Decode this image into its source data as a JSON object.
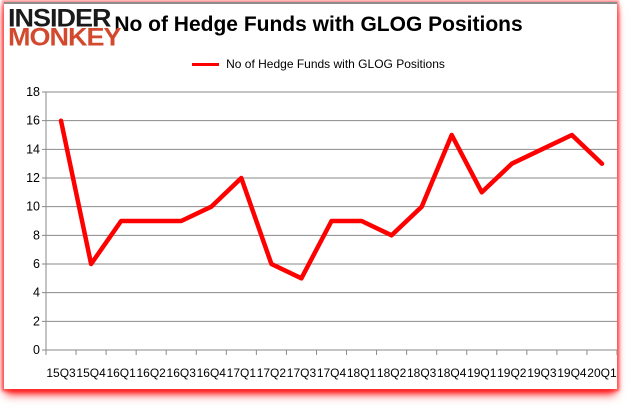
{
  "logo": {
    "line1": "INSIDER",
    "line2": "MONKEY"
  },
  "header": {
    "title": "No of Hedge Funds with GLOG Positions"
  },
  "legend": {
    "label": "No of Hedge Funds with GLOG Positions"
  },
  "colors": {
    "series_line": "#ff0000",
    "grid": "#8a8a8a",
    "axis_text": "#000000",
    "logo_primary": "#1a1a1a",
    "logo_accent": "#d2492e",
    "card_top_border": "#8c8c8c",
    "card_glow": "#ff0000"
  },
  "chart_data": {
    "type": "line",
    "title": "No of Hedge Funds with GLOG Positions",
    "series_name": "No of Hedge Funds with GLOG Positions",
    "categories": [
      "15Q3",
      "15Q4",
      "16Q1",
      "16Q2",
      "16Q3",
      "16Q4",
      "17Q1",
      "17Q2",
      "17Q3",
      "17Q4",
      "18Q1",
      "18Q2",
      "18Q3",
      "18Q4",
      "19Q1",
      "19Q2",
      "19Q3",
      "19Q4",
      "20Q1"
    ],
    "values": [
      16,
      6,
      9,
      9,
      9,
      10,
      12,
      6,
      5,
      9,
      9,
      8,
      10,
      15,
      11,
      13,
      14,
      15,
      13
    ],
    "ylim": [
      0,
      18
    ],
    "yticks": [
      0,
      2,
      4,
      6,
      8,
      10,
      12,
      14,
      16,
      18
    ],
    "xlabel": "",
    "ylabel": "",
    "grid": true,
    "legend_position": "top-center",
    "line_color": "#ff0000"
  }
}
